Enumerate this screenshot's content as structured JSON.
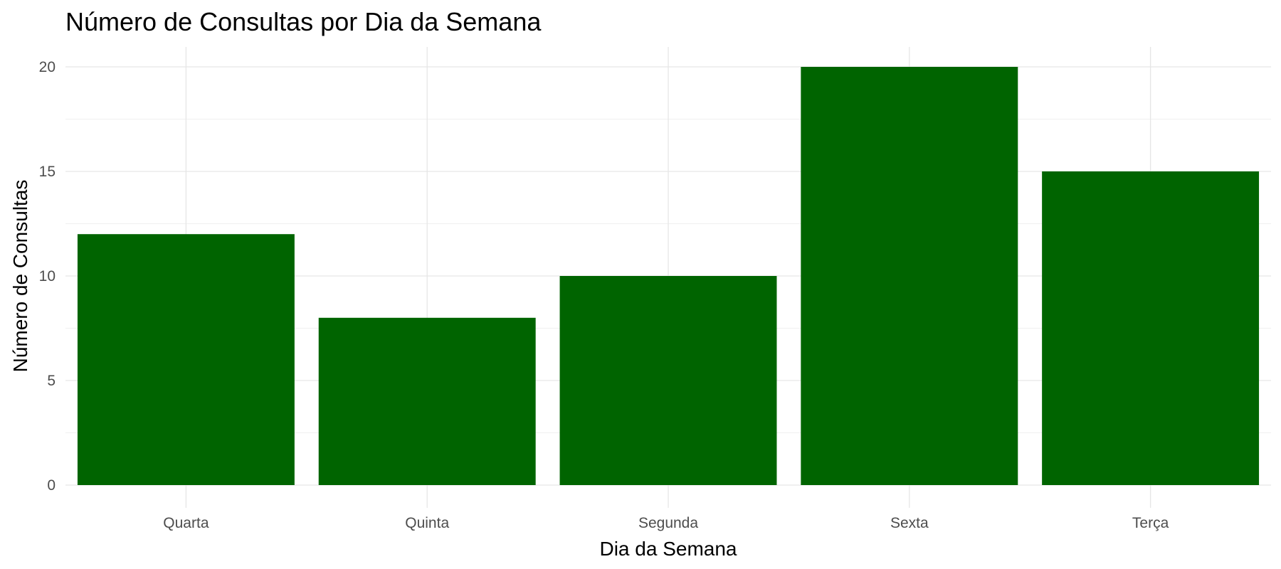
{
  "chart_data": {
    "type": "bar",
    "title": "Número de Consultas por Dia da Semana",
    "xlabel": "Dia da Semana",
    "ylabel": "Número de Consultas",
    "categories": [
      "Quarta",
      "Quinta",
      "Segunda",
      "Sexta",
      "Terça"
    ],
    "values": [
      12,
      8,
      10,
      20,
      15
    ],
    "ylim": [
      0,
      21
    ],
    "yticks": [
      0,
      5,
      10,
      15,
      20
    ],
    "grid": true,
    "legend": "none",
    "bar_color": "#006400"
  }
}
